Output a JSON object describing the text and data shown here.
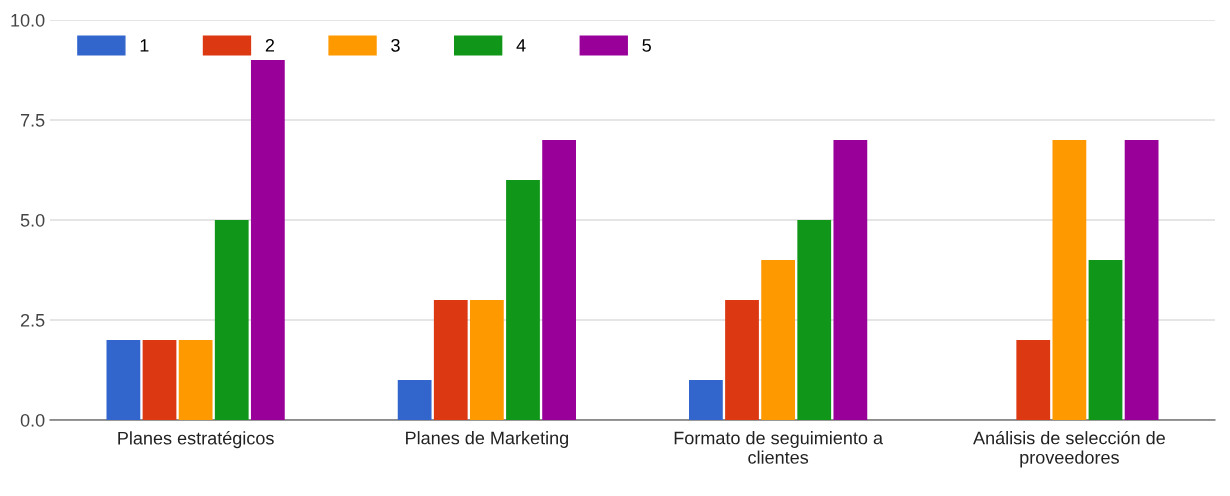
{
  "chart_data": {
    "type": "bar",
    "categories": [
      "Planes estratégicos",
      "Planes de Marketing",
      "Formato de seguimiento a clientes",
      "Análisis de selección de proveedores"
    ],
    "series": [
      {
        "name": "1",
        "color": "#3366cc",
        "values": [
          2,
          1,
          1,
          0
        ]
      },
      {
        "name": "2",
        "color": "#dc3912",
        "values": [
          2,
          3,
          3,
          2
        ]
      },
      {
        "name": "3",
        "color": "#ff9900",
        "values": [
          2,
          3,
          4,
          7
        ]
      },
      {
        "name": "4",
        "color": "#109618",
        "values": [
          5,
          6,
          5,
          4
        ]
      },
      {
        "name": "5",
        "color": "#990099",
        "values": [
          9,
          7,
          7,
          7
        ]
      }
    ],
    "ylim": [
      0,
      10
    ],
    "yticks": [
      {
        "value": 0,
        "label": "0.0"
      },
      {
        "value": 2.5,
        "label": "2.5"
      },
      {
        "value": 5,
        "label": "5.0"
      },
      {
        "value": 7.5,
        "label": "7.5"
      },
      {
        "value": 10,
        "label": "10.0"
      }
    ],
    "grid": "y",
    "legend": "top left"
  }
}
